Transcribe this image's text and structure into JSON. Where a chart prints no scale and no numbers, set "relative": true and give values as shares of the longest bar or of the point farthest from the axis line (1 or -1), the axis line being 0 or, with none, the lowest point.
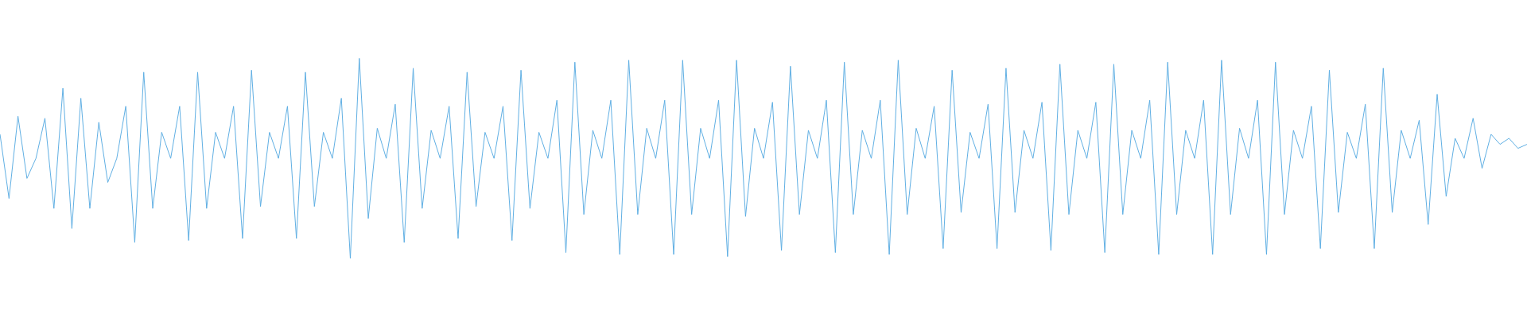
{
  "chart_data": {
    "type": "line",
    "relative": true,
    "color": "#5dade2",
    "categories": [
      null,
      null,
      null,
      null,
      null,
      null,
      null,
      null,
      null,
      null,
      null,
      null,
      null,
      null,
      null,
      null,
      null,
      null,
      null,
      null,
      null,
      null,
      null,
      null,
      null,
      null,
      null,
      null,
      null,
      null,
      null,
      null,
      null,
      null,
      null,
      null,
      null,
      null,
      null,
      null,
      null,
      null,
      null,
      null,
      null,
      null,
      null,
      null,
      null,
      null,
      null,
      null,
      null,
      null,
      null,
      null,
      null,
      null,
      null,
      null,
      null,
      null,
      null,
      null,
      null,
      null,
      null,
      null,
      null,
      null,
      null,
      null,
      null,
      null,
      null,
      null,
      null,
      null,
      null,
      null,
      null,
      null,
      null,
      null,
      null,
      null,
      null,
      null,
      null,
      null,
      null,
      null,
      null,
      null,
      null,
      null,
      null,
      null,
      null,
      null,
      null,
      null,
      null,
      null,
      null,
      null,
      null,
      null,
      null,
      null,
      null,
      null,
      null,
      null,
      null,
      null,
      null,
      null,
      null,
      null,
      null,
      null,
      null,
      null,
      null,
      null,
      null,
      null,
      null,
      null,
      null,
      null,
      null,
      null,
      null,
      null,
      null,
      null,
      null,
      null,
      null,
      null,
      null,
      null,
      null,
      null,
      null,
      null,
      null,
      null,
      null,
      null,
      null,
      null,
      null,
      null,
      null,
      null,
      null,
      null,
      null,
      null,
      null,
      null,
      null,
      null,
      null,
      null,
      null,
      null,
      null
    ],
    "values": [
      0.62,
      0.3,
      0.71,
      0.4,
      0.5,
      0.7,
      0.25,
      0.85,
      0.15,
      0.8,
      0.25,
      0.68,
      0.38,
      0.5,
      0.76,
      0.08,
      0.93,
      0.25,
      0.63,
      0.5,
      0.76,
      0.09,
      0.93,
      0.25,
      0.63,
      0.5,
      0.76,
      0.1,
      0.94,
      0.26,
      0.63,
      0.5,
      0.76,
      0.1,
      0.93,
      0.26,
      0.63,
      0.5,
      0.8,
      0.0,
      1.0,
      0.2,
      0.65,
      0.5,
      0.77,
      0.08,
      0.95,
      0.25,
      0.64,
      0.5,
      0.76,
      0.1,
      0.93,
      0.26,
      0.63,
      0.5,
      0.76,
      0.09,
      0.94,
      0.25,
      0.63,
      0.5,
      0.79,
      0.03,
      0.98,
      0.22,
      0.64,
      0.5,
      0.79,
      0.02,
      0.99,
      0.22,
      0.65,
      0.5,
      0.79,
      0.02,
      0.99,
      0.22,
      0.65,
      0.5,
      0.79,
      0.01,
      0.99,
      0.21,
      0.65,
      0.5,
      0.78,
      0.04,
      0.96,
      0.22,
      0.64,
      0.5,
      0.79,
      0.03,
      0.98,
      0.22,
      0.64,
      0.5,
      0.79,
      0.02,
      0.99,
      0.22,
      0.65,
      0.5,
      0.76,
      0.05,
      0.94,
      0.23,
      0.63,
      0.5,
      0.77,
      0.05,
      0.95,
      0.23,
      0.64,
      0.5,
      0.78,
      0.04,
      0.97,
      0.22,
      0.64,
      0.5,
      0.78,
      0.03,
      0.97,
      0.22,
      0.64,
      0.5,
      0.79,
      0.02,
      0.98,
      0.22,
      0.64,
      0.5,
      0.79,
      0.02,
      0.99,
      0.22,
      0.65,
      0.5,
      0.79,
      0.02,
      0.98,
      0.22,
      0.64,
      0.5,
      0.76,
      0.05,
      0.94,
      0.23,
      0.63,
      0.5,
      0.77,
      0.05,
      0.95,
      0.23,
      0.64,
      0.5,
      0.69,
      0.17,
      0.82,
      0.31,
      0.6,
      0.5,
      0.7,
      0.45,
      0.62,
      0.57,
      0.6,
      0.55,
      0.57
    ]
  }
}
